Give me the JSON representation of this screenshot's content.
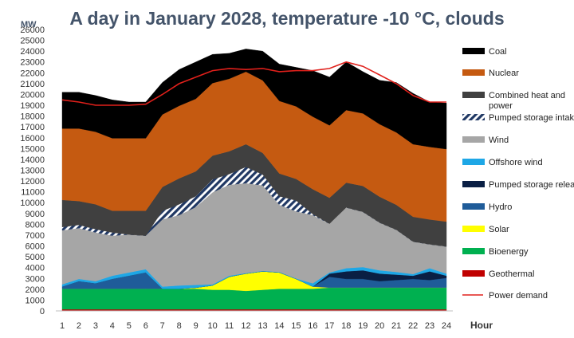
{
  "chart_data": {
    "type": "area",
    "title": "A day in January 2028, temperature -10 °C, clouds",
    "ylabel": "MW",
    "xlabel": "Hour",
    "x": [
      1,
      2,
      3,
      4,
      5,
      6,
      7,
      8,
      9,
      10,
      11,
      12,
      13,
      14,
      15,
      16,
      17,
      18,
      19,
      20,
      21,
      22,
      23,
      24
    ],
    "ylim": [
      0,
      26000
    ],
    "ytick_step": 1000,
    "grid": false,
    "legend_position": "right",
    "stacked": true,
    "series": [
      {
        "name": "Geothermal",
        "color": "#c00000",
        "values": [
          150,
          150,
          150,
          150,
          150,
          150,
          150,
          150,
          150,
          150,
          150,
          150,
          150,
          150,
          150,
          150,
          150,
          150,
          150,
          150,
          150,
          150,
          150,
          150
        ]
      },
      {
        "name": "Bioenergy",
        "color": "#00b050",
        "values": [
          1900,
          1900,
          1900,
          1900,
          1900,
          1900,
          1900,
          1900,
          1900,
          1800,
          1800,
          1700,
          1800,
          1900,
          1900,
          1900,
          2000,
          2000,
          2000,
          2000,
          2000,
          2000,
          2000,
          2000
        ]
      },
      {
        "name": "Solar",
        "color": "#ffff00",
        "values": [
          0,
          0,
          0,
          0,
          0,
          0,
          0,
          0,
          100,
          400,
          1200,
          1600,
          1700,
          1500,
          900,
          200,
          0,
          0,
          0,
          0,
          0,
          0,
          0,
          0
        ]
      },
      {
        "name": "Hydro",
        "color": "#1f5c99",
        "values": [
          200,
          700,
          500,
          900,
          1200,
          1500,
          0,
          0,
          0,
          0,
          0,
          0,
          0,
          0,
          0,
          0,
          1000,
          800,
          800,
          600,
          700,
          800,
          700,
          900
        ]
      },
      {
        "name": "Pumped storage release",
        "color": "#0a1f44",
        "values": [
          0,
          0,
          0,
          0,
          0,
          0,
          0,
          0,
          0,
          0,
          0,
          0,
          0,
          0,
          0,
          0,
          300,
          700,
          800,
          700,
          500,
          300,
          800,
          200
        ]
      },
      {
        "name": "Offshore wind",
        "color": "#1ea7e6",
        "values": [
          200,
          200,
          200,
          300,
          300,
          300,
          200,
          300,
          250,
          100,
          100,
          50,
          50,
          50,
          50,
          300,
          100,
          300,
          300,
          300,
          250,
          150,
          300,
          200
        ]
      },
      {
        "name": "Wind",
        "color": "#a6a6a6",
        "values": [
          5000,
          4700,
          4500,
          3700,
          3500,
          3100,
          6200,
          6500,
          7200,
          8500,
          8400,
          8300,
          7900,
          6200,
          6200,
          6300,
          4500,
          5600,
          5100,
          4400,
          3900,
          3000,
          2200,
          2500
        ]
      },
      {
        "name": "Pumped storage intake",
        "color": "#203864",
        "pattern": "hatch",
        "values": [
          300,
          300,
          300,
          300,
          0,
          0,
          800,
          1000,
          1000,
          1200,
          1000,
          1500,
          1000,
          800,
          1000,
          100,
          0,
          0,
          0,
          0,
          0,
          0,
          0,
          0
        ]
      },
      {
        "name": "Combined heat and power",
        "color": "#404040",
        "values": [
          2500,
          2200,
          2300,
          2000,
          2200,
          2300,
          2200,
          2400,
          2300,
          2200,
          2100,
          2100,
          2000,
          2100,
          2000,
          2300,
          2400,
          2300,
          2400,
          2400,
          2300,
          2300,
          2300,
          2300
        ]
      },
      {
        "name": "Nuclear",
        "color": "#c55a11",
        "values": [
          6600,
          6700,
          6700,
          6700,
          6700,
          6700,
          6700,
          6700,
          6700,
          6700,
          6700,
          6700,
          6700,
          6700,
          6700,
          6700,
          6700,
          6700,
          6700,
          6700,
          6700,
          6700,
          6700,
          6700
        ]
      },
      {
        "name": "Coal",
        "color": "#000000",
        "values": [
          3350,
          3350,
          3350,
          3550,
          3350,
          3350,
          2950,
          3350,
          3400,
          2650,
          2350,
          2100,
          2700,
          3400,
          3600,
          4250,
          4450,
          4450,
          3850,
          4050,
          4600,
          4700,
          4150,
          4250
        ]
      }
    ],
    "line_series": [
      {
        "name": "Power demand",
        "color": "#e0201b",
        "values": [
          19500,
          19300,
          19000,
          19000,
          19000,
          19100,
          20000,
          21000,
          21600,
          22200,
          22400,
          22300,
          22400,
          22100,
          22200,
          22200,
          22400,
          23000,
          22600,
          21800,
          21000,
          19900,
          19300,
          19300
        ]
      }
    ],
    "legend": [
      "Coal",
      "Nuclear",
      "Combined heat and power",
      "Pumped storage intake",
      "Wind",
      "Offshore wind",
      "Pumped storage release",
      "Hydro",
      "Solar",
      "Bioenergy",
      "Geothermal",
      "Power demand"
    ]
  }
}
